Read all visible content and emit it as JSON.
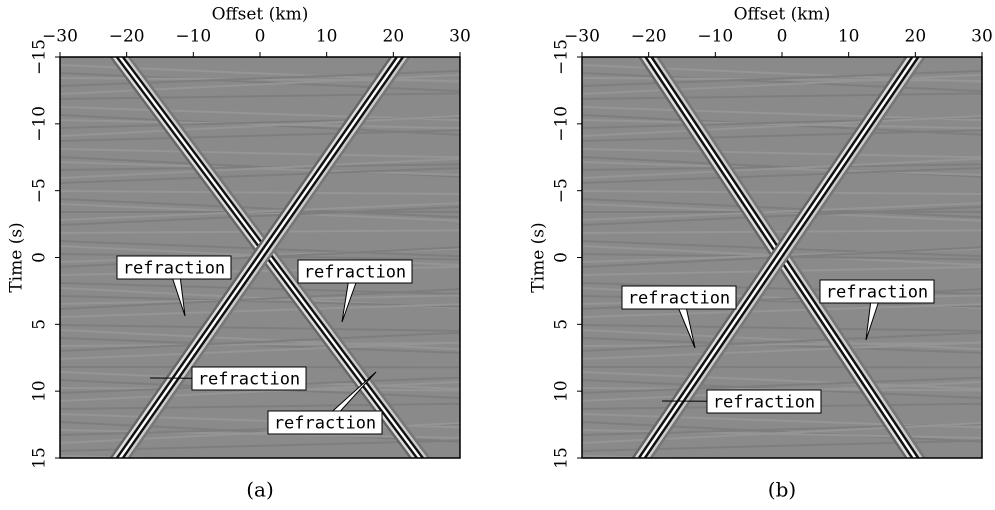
{
  "chart_data": [
    {
      "type": "seismic",
      "xlabel": "Offset (km)",
      "ylabel": "Time (s)",
      "caption": "(a)",
      "xlim": [
        -30,
        30
      ],
      "ylim": [
        -15,
        15
      ],
      "xticks": [
        {
          "value": -30,
          "label": "−30"
        },
        {
          "value": -20,
          "label": "−20"
        },
        {
          "value": -10,
          "label": "−10"
        },
        0,
        10,
        20,
        30
      ],
      "yticks": [
        {
          "value": -15,
          "label": "−15"
        },
        {
          "value": -10,
          "label": "−10"
        },
        {
          "value": -5,
          "label": "−5"
        },
        0,
        5,
        10,
        15
      ],
      "annotations": [
        "refraction",
        "refraction",
        "refraction",
        "refraction"
      ]
    },
    {
      "type": "seismic",
      "xlabel": "Offset (km)",
      "ylabel": "Time (s)",
      "caption": "(b)",
      "xlim": [
        -30,
        30
      ],
      "ylim": [
        -15,
        15
      ],
      "xticks": [
        {
          "value": -30,
          "label": "−30"
        },
        {
          "value": -20,
          "label": "−20"
        },
        {
          "value": -10,
          "label": "−10"
        },
        0,
        10,
        20,
        30
      ],
      "yticks": [
        {
          "value": -15,
          "label": "−15"
        },
        {
          "value": -10,
          "label": "−10"
        },
        {
          "value": -5,
          "label": "−5"
        },
        0,
        5,
        10,
        15
      ],
      "annotations": [
        "refraction",
        "refraction",
        "refraction"
      ]
    }
  ]
}
